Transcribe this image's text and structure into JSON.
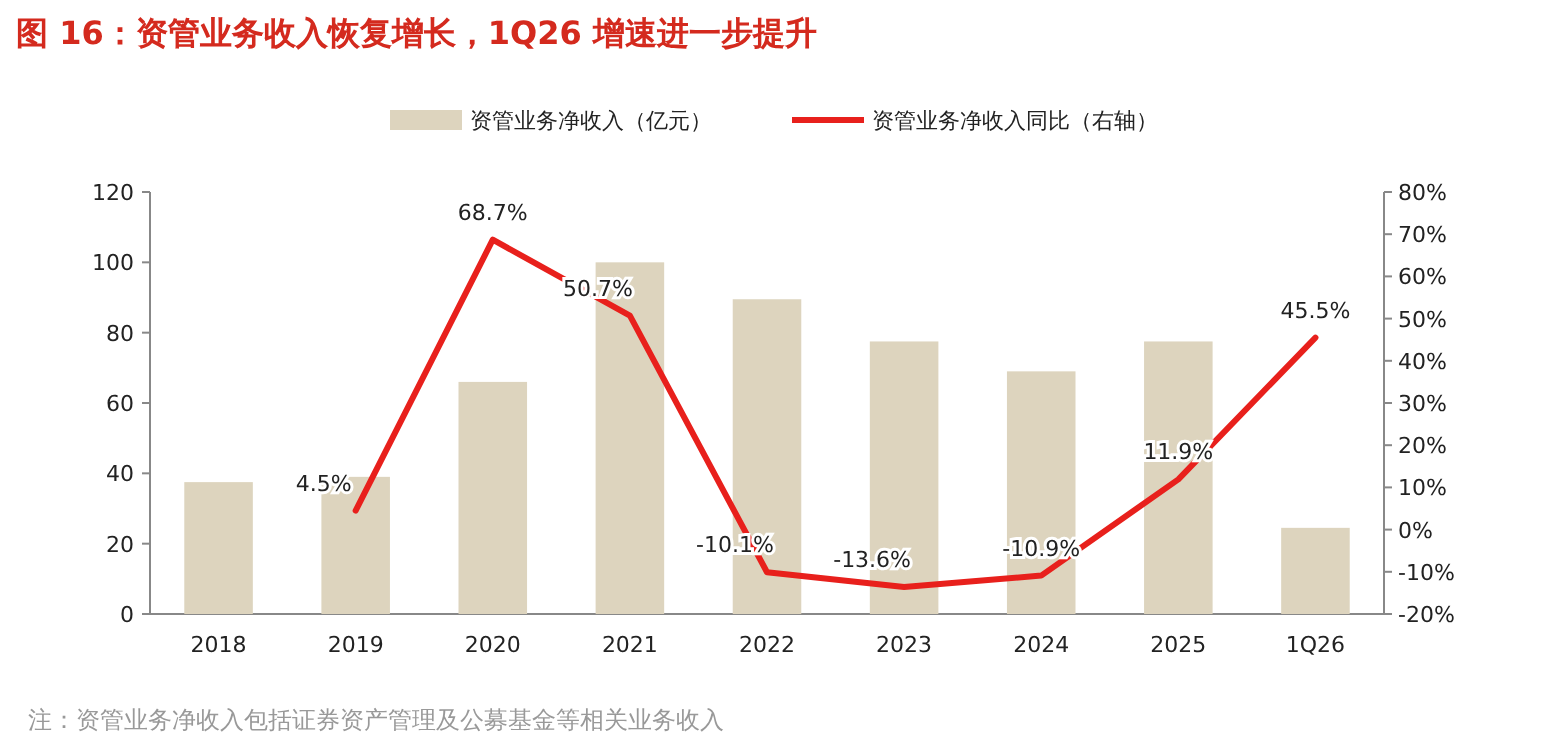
{
  "chart_data": {
    "type": "bar",
    "title": "图 16：资管业务收入恢复增长，1Q26 增速进一步提升",
    "categories": [
      "2018",
      "2019",
      "2020",
      "2021",
      "2022",
      "2023",
      "2024",
      "2025",
      "1Q26"
    ],
    "series": [
      {
        "name": "资管业务净收入（亿元）",
        "color": "#ddd4be",
        "values": [
          37.5,
          39,
          66,
          100,
          89.5,
          77.5,
          69,
          77.5,
          24.5
        ]
      },
      {
        "name": "资管业务净收入同比（右轴）",
        "type": "line",
        "axis": "y2",
        "color": "#e8201c",
        "values": [
          null,
          4.5,
          68.7,
          50.7,
          -10.1,
          -13.6,
          -10.9,
          11.9,
          45.5
        ],
        "value_labels": [
          null,
          "4.5%",
          "68.7%",
          "50.7%",
          "-10.1%",
          "-13.6%",
          "-10.9%",
          "11.9%",
          "45.5%"
        ]
      }
    ],
    "ylim": [
      0,
      120
    ],
    "yticks": [
      0,
      20,
      40,
      60,
      80,
      100,
      120
    ],
    "y2lim": [
      -20,
      80
    ],
    "y2ticks": [
      {
        "value": -20,
        "label": "-20%"
      },
      {
        "value": -10,
        "label": "-10%"
      },
      {
        "value": 0,
        "label": "0%"
      },
      {
        "value": 10,
        "label": "10%"
      },
      {
        "value": 20,
        "label": "20%"
      },
      {
        "value": 30,
        "label": "30%"
      },
      {
        "value": 40,
        "label": "40%"
      },
      {
        "value": 50,
        "label": "50%"
      },
      {
        "value": 60,
        "label": "60%"
      },
      {
        "value": 70,
        "label": "70%"
      },
      {
        "value": 80,
        "label": "80%"
      }
    ],
    "legend": "top",
    "grid": false,
    "annotations": [
      "注：资管业务净收入包括证券资产管理及公募基金等相关业务收入"
    ]
  }
}
